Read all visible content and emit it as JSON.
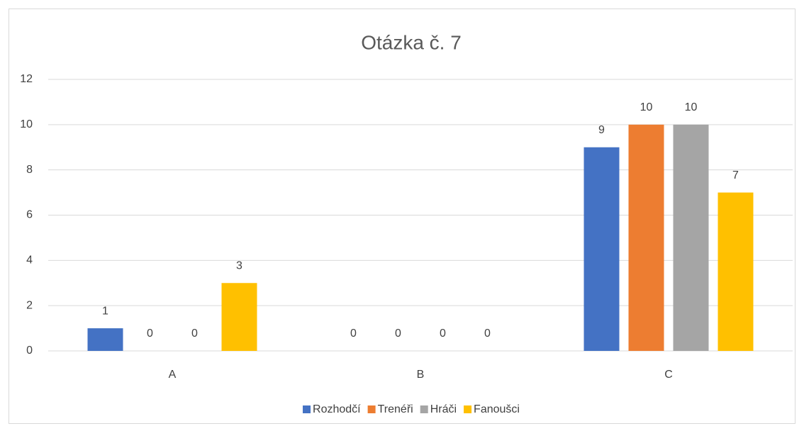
{
  "chart_data": {
    "type": "bar",
    "title": "Otázka č. 7",
    "categories": [
      "A",
      "B",
      "C"
    ],
    "series": [
      {
        "name": "Rozhodčí",
        "color": "#4472c4",
        "values": [
          1,
          0,
          9
        ]
      },
      {
        "name": "Trenéři",
        "color": "#ed7d31",
        "values": [
          0,
          0,
          10
        ]
      },
      {
        "name": "Hráči",
        "color": "#a5a5a5",
        "values": [
          0,
          0,
          10
        ]
      },
      {
        "name": "Fanoušci",
        "color": "#ffc000",
        "values": [
          3,
          0,
          7
        ]
      }
    ],
    "ylim": [
      0,
      12
    ],
    "yticks": [
      0,
      2,
      4,
      6,
      8,
      10,
      12
    ],
    "grid": true,
    "legend": "bottom",
    "data_labels": true
  }
}
